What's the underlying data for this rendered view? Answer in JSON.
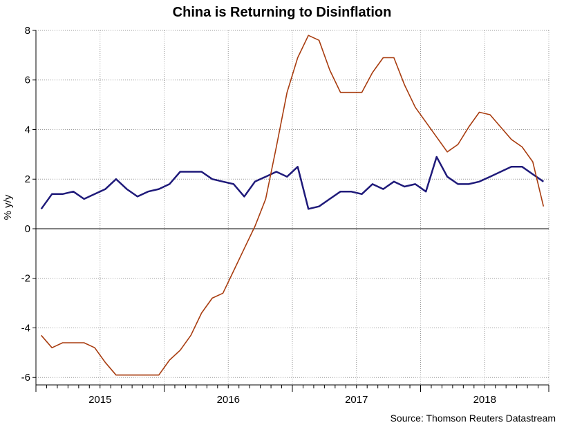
{
  "chart_data": {
    "type": "line",
    "title": "China is Returning to Disinflation",
    "ylabel": "% y/y",
    "xlabel": "",
    "source": "Source: Thomson Reuters Datastream",
    "ylim": [
      -6.3,
      8
    ],
    "yticks": [
      -6,
      -4,
      -2,
      0,
      2,
      4,
      6,
      8
    ],
    "x_start": "2015-01",
    "x_ticks": [
      "2015",
      "2016",
      "2017",
      "2018"
    ],
    "grid": true,
    "zero_line": true,
    "series": [
      {
        "color": "#1f1a7a",
        "values": [
          0.8,
          1.4,
          1.4,
          1.5,
          1.2,
          1.4,
          1.6,
          2.0,
          1.6,
          1.3,
          1.5,
          1.6,
          1.8,
          2.3,
          2.3,
          2.3,
          2.0,
          1.9,
          1.8,
          1.3,
          1.9,
          2.1,
          2.3,
          2.1,
          2.5,
          0.8,
          0.9,
          1.2,
          1.5,
          1.5,
          1.4,
          1.8,
          1.6,
          1.9,
          1.7,
          1.8,
          1.5,
          2.9,
          2.1,
          1.8,
          1.8,
          1.9,
          2.1,
          2.3,
          2.5,
          2.5,
          2.2,
          1.9
        ]
      },
      {
        "color": "#a83c0f",
        "values": [
          -4.3,
          -4.8,
          -4.6,
          -4.6,
          -4.6,
          -4.8,
          -5.4,
          -5.9,
          -5.9,
          -5.9,
          -5.9,
          -5.9,
          -5.3,
          -4.9,
          -4.3,
          -3.4,
          -2.8,
          -2.6,
          -1.7,
          -0.8,
          0.1,
          1.2,
          3.3,
          5.5,
          6.9,
          7.8,
          7.6,
          6.4,
          5.5,
          5.5,
          5.5,
          6.3,
          6.9,
          6.9,
          5.8,
          4.9,
          4.3,
          3.7,
          3.1,
          3.4,
          4.1,
          4.7,
          4.6,
          4.1,
          3.6,
          3.3,
          2.7,
          0.9
        ]
      }
    ]
  }
}
